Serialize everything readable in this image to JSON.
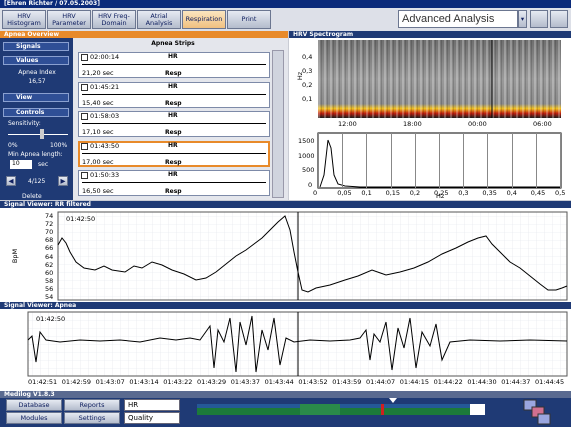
{
  "window": {
    "title": "[Ehren Richter / 07.05.2003]"
  },
  "toolbar": {
    "tabs": [
      "HRV Histogram",
      "HRV Parameter",
      "HRV Freq-Domain",
      "Atrial Analysis",
      "Respiration",
      "Print"
    ],
    "analysis_select": "Advanced Analysis"
  },
  "apnea_overview": {
    "title": "Apnea Overview",
    "sidebar": {
      "signals": "Signals",
      "values": "Values",
      "apnea_index_label": "Apnea Index",
      "apnea_index": "16,57",
      "view": "View",
      "controls": "Controls",
      "sensitivity": "Sensitivity:",
      "min": "0%",
      "max": "100%",
      "min_length_label": "Min Apnea length:",
      "min_length": "10",
      "unit": "sec",
      "counter": "4/125",
      "delete": "Delete"
    },
    "strips_title": "Apnea Strips",
    "strips": [
      {
        "time": "02:00:14",
        "duration": "21,20 sec",
        "top": "HR",
        "bottom": "Resp"
      },
      {
        "time": "01:45:21",
        "duration": "15,40 sec",
        "top": "HR",
        "bottom": "Resp"
      },
      {
        "time": "01:58:03",
        "duration": "17,10 sec",
        "top": "HR",
        "bottom": "Resp"
      },
      {
        "time": "01:43:50",
        "duration": "17,00 sec",
        "top": "HR",
        "bottom": "Resp"
      },
      {
        "time": "01:50:33",
        "duration": "16,50 sec",
        "top": "HR",
        "bottom": "Resp"
      }
    ]
  },
  "spectrogram": {
    "title": "HRV Spectrogram",
    "y_label": "Hz",
    "y_ticks": [
      "0,4",
      "0,3",
      "0,2",
      "0,1"
    ],
    "x_ticks": [
      "12:00",
      "18:00",
      "00:00",
      "06:00"
    ],
    "spectrum_y_ticks": [
      "1500",
      "1000",
      "500",
      "0"
    ],
    "spectrum_x_ticks": [
      "0",
      "0,05",
      "0,1",
      "0,15",
      "0,2",
      "0,25",
      "0,3",
      "0,35",
      "0,4",
      "0,45",
      "0,5"
    ],
    "spectrum_x_label": "Hz"
  },
  "rr_viewer": {
    "title": "Signal Viewer: RR filtered",
    "cursor_time": "01:42:50",
    "y_label": "BpM",
    "y_ticks": [
      "74",
      "72",
      "70",
      "68",
      "66",
      "64",
      "62",
      "60",
      "58",
      "56",
      "54"
    ]
  },
  "apnea_viewer": {
    "title": "Signal Viewer: Apnea",
    "cursor_time": "01:42:50",
    "x_ticks": [
      "01:42:51",
      "01:42:59",
      "01:43:07",
      "01:43:14",
      "01:43:22",
      "01:43:29",
      "01:43:37",
      "01:43:44",
      "01:43:52",
      "01:43:59",
      "01:44:07",
      "01:44:15",
      "01:44:22",
      "01:44:30",
      "01:44:37",
      "01:44:45"
    ]
  },
  "footer": {
    "title": "Medilog V1.8.3",
    "buttons": [
      "Database",
      "Reports",
      "Modules",
      "Settings"
    ],
    "selects": [
      "HR",
      "Quality"
    ]
  }
}
